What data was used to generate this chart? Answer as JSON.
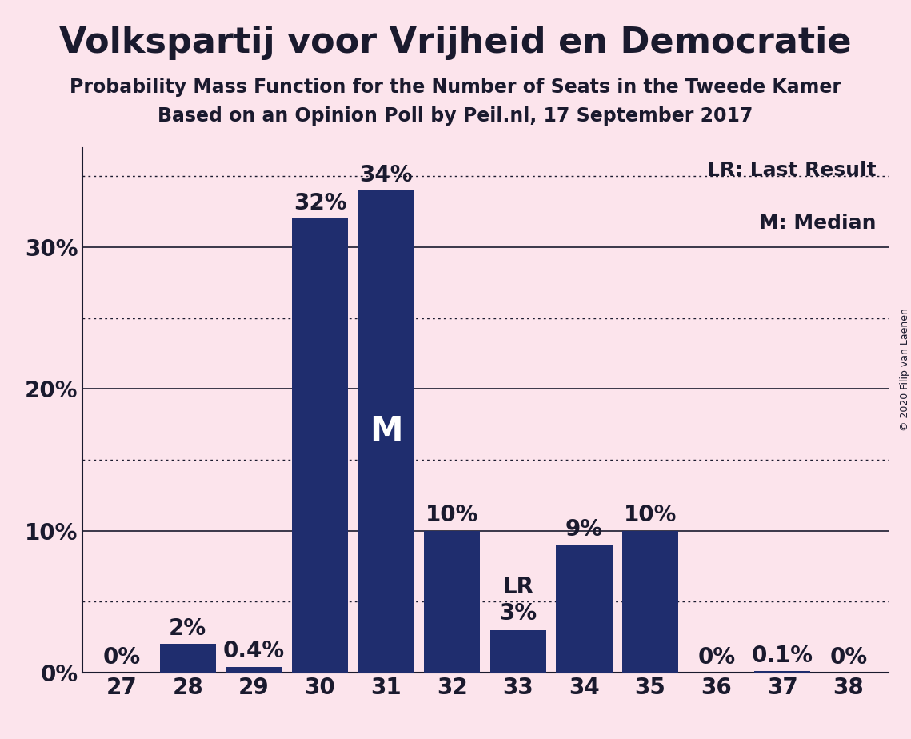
{
  "title": "Volkspartij voor Vrijheid en Democratie",
  "subtitle1": "Probability Mass Function for the Number of Seats in the Tweede Kamer",
  "subtitle2": "Based on an Opinion Poll by Peil.nl, 17 September 2017",
  "copyright": "© 2020 Filip van Laenen",
  "legend_lr": "LR: Last Result",
  "legend_m": "M: Median",
  "categories": [
    27,
    28,
    29,
    30,
    31,
    32,
    33,
    34,
    35,
    36,
    37,
    38
  ],
  "values": [
    0.0,
    2.0,
    0.4,
    32.0,
    34.0,
    10.0,
    3.0,
    9.0,
    10.0,
    0.0,
    0.1,
    0.0
  ],
  "labels": [
    "0%",
    "2%",
    "0.4%",
    "32%",
    "34%",
    "10%",
    "3%",
    "9%",
    "10%",
    "0%",
    "0.1%",
    "0%"
  ],
  "bar_color": "#1f2d6e",
  "background_color": "#fce4ec",
  "text_color": "#1a1a2e",
  "ylim": [
    0,
    37
  ],
  "median_seat": 31,
  "lr_seat": 33,
  "title_fontsize": 32,
  "subtitle_fontsize": 17,
  "tick_fontsize": 20,
  "annotation_fontsize": 20,
  "legend_fontsize": 18,
  "copyright_fontsize": 9,
  "solid_grid": [
    10,
    20,
    30
  ],
  "dotted_grid": [
    5,
    15,
    25,
    35
  ]
}
